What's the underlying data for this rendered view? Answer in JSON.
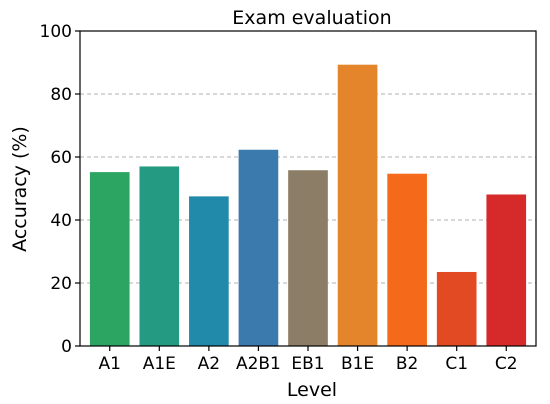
{
  "chart_data": {
    "type": "bar",
    "title": "Exam evaluation",
    "xlabel": "Level",
    "ylabel": "Accuracy (%)",
    "categories": [
      "A1",
      "A1E",
      "A2",
      "A2B1",
      "EB1",
      "B1E",
      "B2",
      "C1",
      "C2"
    ],
    "values": [
      55.2,
      57.0,
      47.5,
      62.3,
      55.8,
      89.3,
      54.7,
      23.5,
      48.1
    ],
    "colors": [
      "#2ca462",
      "#259a83",
      "#2189aa",
      "#3a7aad",
      "#8b7d66",
      "#e5852b",
      "#f46a1a",
      "#e14a22",
      "#d62a2a"
    ],
    "ylim": [
      0,
      100
    ],
    "yticks": [
      0,
      20,
      40,
      60,
      80,
      100
    ],
    "grid": true,
    "grid_axis": "y"
  }
}
